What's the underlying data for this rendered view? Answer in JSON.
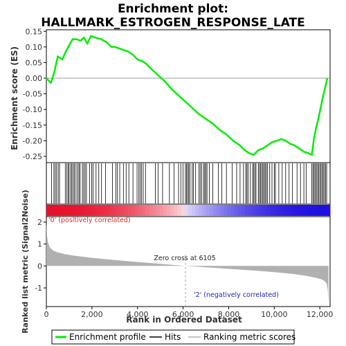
{
  "title_line1": "Enrichment plot:",
  "title_line2": "HALLMARK_ESTROGEN_RESPONSE_LATE",
  "colors": {
    "enrichment": "#00ee00",
    "hits": "#000000",
    "ranking": "#b0b0b0",
    "pos_band": "#e8102a",
    "neg_band": "#2010e0",
    "pos_label": "#ee2222",
    "neg_label": "#2222cc"
  },
  "legend": {
    "enrichment": "Enrichment profile",
    "hits": "Hits",
    "ranking": "Ranking metric scores"
  },
  "chart_data": [
    {
      "type": "line",
      "name": "enrichment-profile",
      "ylabel": "Enrichment score (ES)",
      "ylim": [
        -0.27,
        0.155
      ],
      "xlim": [
        0,
        12450
      ],
      "yticks": [
        "0.15",
        "0.10",
        "0.05",
        "0.00",
        "-0.05",
        "-0.10",
        "-0.15",
        "-0.20",
        "-0.25"
      ],
      "ytick_values": [
        0.15,
        0.1,
        0.05,
        0.0,
        -0.05,
        -0.1,
        -0.15,
        -0.2,
        -0.25
      ],
      "grid": false,
      "x": [
        0,
        200,
        350,
        500,
        700,
        850,
        1000,
        1150,
        1300,
        1500,
        1650,
        1800,
        1950,
        2150,
        2400,
        2650,
        2850,
        3000,
        3200,
        3400,
        3600,
        3800,
        4000,
        4200,
        4400,
        4600,
        4900,
        5200,
        5500,
        5800,
        6100,
        6400,
        6700,
        7000,
        7300,
        7600,
        7900,
        8200,
        8500,
        8700,
        8900,
        9100,
        9300,
        9500,
        9700,
        9900,
        10100,
        10300,
        10500,
        10700,
        10900,
        11100,
        11300,
        11500,
        11650,
        11750,
        11850,
        11950,
        12050,
        12150,
        12250,
        12330
      ],
      "y": [
        0.0,
        -0.015,
        0.02,
        0.07,
        0.06,
        0.085,
        0.105,
        0.125,
        0.125,
        0.12,
        0.13,
        0.11,
        0.135,
        0.13,
        0.125,
        0.115,
        0.1,
        0.1,
        0.095,
        0.09,
        0.085,
        0.075,
        0.06,
        0.055,
        0.045,
        0.03,
        0.01,
        -0.01,
        -0.035,
        -0.055,
        -0.075,
        -0.095,
        -0.115,
        -0.13,
        -0.145,
        -0.165,
        -0.18,
        -0.2,
        -0.215,
        -0.23,
        -0.24,
        -0.245,
        -0.23,
        -0.225,
        -0.215,
        -0.205,
        -0.2,
        -0.195,
        -0.2,
        -0.21,
        -0.215,
        -0.225,
        -0.235,
        -0.24,
        -0.245,
        -0.19,
        -0.155,
        -0.125,
        -0.09,
        -0.055,
        -0.025,
        0.0
      ]
    },
    {
      "type": "hits",
      "name": "hits",
      "positions": [
        230,
        330,
        390,
        450,
        520,
        580,
        830,
        900,
        960,
        1000,
        1070,
        1120,
        1180,
        1230,
        1300,
        1370,
        1430,
        1480,
        1580,
        1640,
        1700,
        1760,
        1900,
        1990,
        2050,
        2180,
        2300,
        2420,
        2600,
        2900,
        3050,
        3120,
        3220,
        3380,
        3500,
        3620,
        3800,
        3980,
        4060,
        4120,
        4180,
        4250,
        4350,
        4780,
        4900,
        5100,
        5400,
        5600,
        5800,
        5900,
        6000,
        6100,
        6150,
        6200,
        6250,
        6300,
        6400,
        6450,
        6550,
        6700,
        6750,
        6820,
        6900,
        6950,
        7000,
        7050,
        7150,
        7300,
        7550,
        7700,
        7900,
        8150,
        8350,
        8500,
        8650,
        8750,
        8800,
        8850,
        8950,
        9050,
        9100,
        9150,
        9200,
        9300,
        9350,
        9400,
        9450,
        9500,
        9550,
        9600,
        9650,
        9700,
        9800,
        9900,
        10000,
        10050,
        10200,
        10350,
        10500,
        10650,
        10800,
        11000,
        11150,
        11300,
        11400,
        11650,
        11700,
        11750,
        11800,
        11850,
        11900,
        11950,
        12000,
        12050,
        12100,
        12150,
        12200,
        12250,
        12300
      ]
    },
    {
      "type": "area",
      "name": "ranked-list-metric",
      "ylabel": "Ranked list metric (Signal2Noise)",
      "xlabel": "Rank in Ordered Dataset",
      "ylim": [
        -1.85,
        2.25
      ],
      "xlim": [
        0,
        12450
      ],
      "yticks": [
        "2",
        "1",
        "0",
        "-1"
      ],
      "ytick_values": [
        2,
        1,
        0,
        -1
      ],
      "xticks": [
        "0",
        "2,000",
        "4,000",
        "6,000",
        "8,000",
        "10,000",
        "12,000"
      ],
      "xtick_values": [
        0,
        2000,
        4000,
        6000,
        8000,
        10000,
        12000
      ],
      "x": [
        0,
        30,
        80,
        150,
        300,
        500,
        800,
        1200,
        2000,
        3000,
        4000,
        5000,
        6105,
        7000,
        8000,
        9000,
        10000,
        10800,
        11400,
        11800,
        12050,
        12200,
        12300,
        12350,
        12380
      ],
      "y": [
        2.0,
        1.35,
        1.05,
        0.85,
        0.7,
        0.62,
        0.54,
        0.47,
        0.37,
        0.27,
        0.18,
        0.1,
        0.0,
        -0.06,
        -0.13,
        -0.2,
        -0.28,
        -0.36,
        -0.45,
        -0.53,
        -0.6,
        -0.68,
        -0.8,
        -1.1,
        -1.75
      ],
      "zero_cross_label": "Zero cross at 6105",
      "zero_cross": 6105,
      "pos_label": "'0' (positively correlated)",
      "neg_label": "'2' (negatively correlated)"
    }
  ]
}
